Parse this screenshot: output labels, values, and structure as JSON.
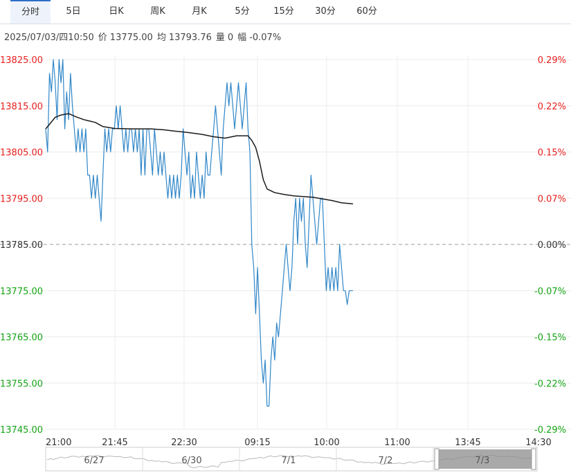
{
  "tabs": [
    "分时",
    "5日",
    "日K",
    "周K",
    "月K",
    "5分",
    "15分",
    "30分",
    "60分"
  ],
  "active_tab": 0,
  "info": {
    "datetime": "2025/07/03/四10:50",
    "price_label": "价",
    "price": "13775.00",
    "avg_label": "均",
    "avg": "13793.76",
    "volume_label": "量",
    "volume": "0",
    "change_label": "幅",
    "change": "-0.07%"
  },
  "colors": {
    "up": "#e8201f",
    "down": "#16a516",
    "neutral": "#333333",
    "price_line": "#2f86c8",
    "avg_line": "#1a1a1a",
    "grid": "#ececec",
    "nav_shade": "#8c8c8c"
  },
  "chart_data": {
    "type": "line",
    "ylim": [
      13745,
      13825
    ],
    "y_ticks": [
      13825,
      13815,
      13805,
      13795,
      13785,
      13775,
      13765,
      13755,
      13745
    ],
    "y_tick_labels": [
      "13825.00",
      "13815.00",
      "13805.00",
      "13795.00",
      "13785.00",
      "13775.00",
      "13765.00",
      "13755.00",
      "13745.00"
    ],
    "pct_tick_labels": [
      "0.29%",
      "0.22%",
      "0.15%",
      "0.07%",
      "0.00%",
      "-0.07%",
      "-0.15%",
      "-0.22%",
      "-0.29%"
    ],
    "prev_close": 13785,
    "x_labels": [
      "21:00",
      "21:45",
      "22:30",
      "09:15",
      "10:00",
      "11:00",
      "13:45",
      "14:30"
    ],
    "session_break_label": "09:15",
    "total_minutes": 450,
    "last_minute": 200,
    "series": [
      {
        "kind": "price",
        "points": [
          [
            0,
            13810
          ],
          [
            1,
            13805
          ],
          [
            2,
            13822
          ],
          [
            3,
            13818
          ],
          [
            4,
            13825
          ],
          [
            5,
            13820
          ],
          [
            6,
            13812
          ],
          [
            7,
            13825
          ],
          [
            8,
            13820
          ],
          [
            9,
            13825
          ],
          [
            10,
            13810
          ],
          [
            11,
            13818
          ],
          [
            12,
            13812
          ],
          [
            13,
            13822
          ],
          [
            14,
            13815
          ],
          [
            15,
            13810
          ],
          [
            16,
            13805
          ],
          [
            17,
            13810
          ],
          [
            18,
            13805
          ],
          [
            19,
            13810
          ],
          [
            20,
            13805
          ],
          [
            21,
            13810
          ],
          [
            22,
            13800
          ],
          [
            23,
            13800
          ],
          [
            24,
            13795
          ],
          [
            25,
            13800
          ],
          [
            26,
            13795
          ],
          [
            27,
            13800
          ],
          [
            28,
            13795
          ],
          [
            29,
            13790
          ],
          [
            30,
            13800
          ],
          [
            31,
            13810
          ],
          [
            32,
            13805
          ],
          [
            33,
            13810
          ],
          [
            34,
            13805
          ],
          [
            35,
            13810
          ],
          [
            36,
            13810
          ],
          [
            37,
            13815
          ],
          [
            38,
            13810
          ],
          [
            39,
            13815
          ],
          [
            40,
            13810
          ],
          [
            41,
            13805
          ],
          [
            42,
            13810
          ],
          [
            43,
            13805
          ],
          [
            44,
            13810
          ],
          [
            45,
            13810
          ],
          [
            46,
            13805
          ],
          [
            47,
            13810
          ],
          [
            48,
            13805
          ],
          [
            49,
            13810
          ],
          [
            50,
            13800
          ],
          [
            51,
            13810
          ],
          [
            52,
            13800
          ],
          [
            53,
            13810
          ],
          [
            54,
            13810
          ],
          [
            55,
            13805
          ],
          [
            56,
            13800
          ],
          [
            57,
            13810
          ],
          [
            58,
            13805
          ],
          [
            59,
            13800
          ],
          [
            60,
            13805
          ],
          [
            61,
            13800
          ],
          [
            62,
            13805
          ],
          [
            63,
            13800
          ],
          [
            64,
            13795
          ],
          [
            65,
            13800
          ],
          [
            66,
            13795
          ],
          [
            67,
            13800
          ],
          [
            68,
            13795
          ],
          [
            69,
            13800
          ],
          [
            70,
            13795
          ],
          [
            71,
            13800
          ],
          [
            72,
            13810
          ],
          [
            73,
            13805
          ],
          [
            74,
            13800
          ],
          [
            75,
            13805
          ],
          [
            76,
            13795
          ],
          [
            77,
            13800
          ],
          [
            78,
            13795
          ],
          [
            79,
            13805
          ],
          [
            80,
            13800
          ],
          [
            81,
            13795
          ],
          [
            82,
            13800
          ],
          [
            83,
            13795
          ],
          [
            84,
            13805
          ],
          [
            85,
            13800
          ],
          [
            86,
            13800
          ],
          [
            87,
            13805
          ],
          [
            88,
            13810
          ],
          [
            89,
            13815
          ],
          [
            90,
            13810
          ],
          [
            91,
            13805
          ],
          [
            92,
            13800
          ],
          [
            93,
            13810
          ],
          [
            94,
            13815
          ],
          [
            95,
            13820
          ],
          [
            96,
            13815
          ],
          [
            97,
            13820
          ],
          [
            98,
            13815
          ],
          [
            99,
            13810
          ],
          [
            100,
            13815
          ],
          [
            101,
            13820
          ],
          [
            102,
            13815
          ],
          [
            103,
            13810
          ],
          [
            104,
            13815
          ],
          [
            105,
            13820
          ],
          [
            106,
            13810
          ],
          [
            107,
            13805
          ],
          [
            108,
            13785
          ],
          [
            109,
            13780
          ],
          [
            110,
            13770
          ],
          [
            111,
            13780
          ],
          [
            112,
            13770
          ],
          [
            113,
            13760
          ],
          [
            114,
            13755
          ],
          [
            115,
            13760
          ],
          [
            116,
            13750
          ],
          [
            117,
            13750
          ],
          [
            118,
            13760
          ],
          [
            119,
            13765
          ],
          [
            120,
            13760
          ],
          [
            121,
            13768
          ],
          [
            122,
            13765
          ],
          [
            123,
            13770
          ],
          [
            124,
            13775
          ],
          [
            125,
            13780
          ],
          [
            126,
            13785
          ],
          [
            127,
            13780
          ],
          [
            128,
            13775
          ],
          [
            129,
            13780
          ],
          [
            130,
            13790
          ],
          [
            131,
            13795
          ],
          [
            132,
            13785
          ],
          [
            133,
            13795
          ],
          [
            134,
            13790
          ],
          [
            135,
            13795
          ],
          [
            136,
            13785
          ],
          [
            137,
            13780
          ],
          [
            138,
            13790
          ],
          [
            139,
            13800
          ],
          [
            140,
            13795
          ],
          [
            141,
            13790
          ],
          [
            142,
            13785
          ],
          [
            143,
            13790
          ],
          [
            144,
            13795
          ],
          [
            145,
            13795
          ],
          [
            146,
            13785
          ],
          [
            147,
            13775
          ],
          [
            148,
            13780
          ],
          [
            149,
            13775
          ],
          [
            150,
            13780
          ],
          [
            151,
            13775
          ],
          [
            152,
            13780
          ],
          [
            153,
            13775
          ],
          [
            154,
            13785
          ],
          [
            155,
            13780
          ],
          [
            156,
            13775
          ],
          [
            157,
            13775
          ],
          [
            158,
            13772
          ],
          [
            159,
            13775
          ],
          [
            160,
            13775
          ],
          [
            161,
            13775
          ]
        ]
      },
      {
        "kind": "average",
        "points": [
          [
            0,
            13810
          ],
          [
            2,
            13811
          ],
          [
            5,
            13812.5
          ],
          [
            8,
            13813
          ],
          [
            12,
            13813.3
          ],
          [
            16,
            13812.6
          ],
          [
            20,
            13812
          ],
          [
            26,
            13811.4
          ],
          [
            30,
            13810.5
          ],
          [
            36,
            13810.1
          ],
          [
            45,
            13810
          ],
          [
            55,
            13810
          ],
          [
            62,
            13809.8
          ],
          [
            68,
            13809.5
          ],
          [
            75,
            13809.2
          ],
          [
            82,
            13808.8
          ],
          [
            88,
            13808.3
          ],
          [
            94,
            13808
          ],
          [
            100,
            13808.5
          ],
          [
            106,
            13808.5
          ],
          [
            108,
            13807.5
          ],
          [
            110,
            13806
          ],
          [
            112,
            13803
          ],
          [
            114,
            13799
          ],
          [
            116,
            13797
          ],
          [
            120,
            13796.2
          ],
          [
            125,
            13795.8
          ],
          [
            130,
            13795.5
          ],
          [
            140,
            13795.2
          ],
          [
            150,
            13794.5
          ],
          [
            155,
            13794
          ],
          [
            161,
            13793.76
          ]
        ]
      }
    ]
  },
  "navigator": {
    "dates": [
      "6/27",
      "6/30",
      "7/1",
      "7/2",
      "7/3"
    ]
  }
}
